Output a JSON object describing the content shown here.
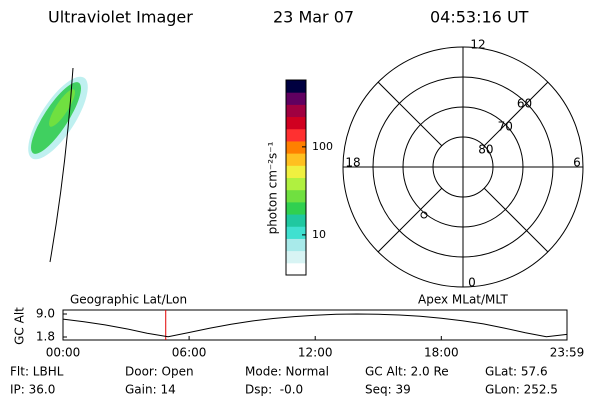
{
  "header": {
    "title": "Ultraviolet Imager",
    "date": "23 Mar 07",
    "time": "04:53:16 UT"
  },
  "colorbar": {
    "label": "photon cm⁻²s⁻¹",
    "log": true,
    "lim": [
      3.5,
      575
    ],
    "ticks": [
      10,
      100
    ],
    "colors": [
      "#ffffff",
      "#d8f4f4",
      "#a8eaea",
      "#40e0d0",
      "#20c8a0",
      "#30d050",
      "#70e040",
      "#b0f040",
      "#f0f040",
      "#ffc020",
      "#ff8000",
      "#ff3030",
      "#d00020",
      "#a00040",
      "#600060",
      "#000040"
    ]
  },
  "polar": {
    "rlim": [
      90,
      50
    ],
    "rings": [
      80,
      70,
      60
    ],
    "mlt_labels": {
      "top": "12",
      "left": "18",
      "right": "6",
      "bottom": "0"
    }
  },
  "orbit_plot": {
    "ylabel": "GC Alt",
    "left_label": "Geographic Lat/Lon",
    "right_label": "Apex MLat/MLT",
    "ylim": [
      1.8,
      9.0
    ],
    "yticks": [
      {
        "value": 9.0,
        "label": "9.0"
      },
      {
        "value": 1.8,
        "label": "1.8"
      }
    ],
    "xlim": [
      0,
      23.98
    ],
    "xticks": [
      {
        "value": 0,
        "label": "00:00"
      },
      {
        "value": 6,
        "label": "06:00"
      },
      {
        "value": 12,
        "label": "12:00"
      },
      {
        "value": 18,
        "label": "18:00"
      },
      {
        "value": 23.98,
        "label": "23:59"
      }
    ],
    "current_time": 4.888,
    "current_color": "#e00000",
    "x": [
      0,
      1,
      2,
      3,
      4,
      5,
      6,
      7,
      8,
      9,
      10,
      11,
      12,
      13,
      14,
      15,
      16,
      17,
      18,
      19,
      20,
      21,
      22,
      23,
      23.98
    ],
    "values": [
      7.4,
      6.6,
      5.6,
      4.4,
      3.0,
      1.9,
      3.2,
      4.6,
      5.8,
      6.8,
      7.6,
      8.2,
      8.6,
      8.9,
      9.0,
      8.9,
      8.7,
      8.3,
      7.7,
      6.9,
      5.9,
      4.6,
      3.1,
      1.9,
      2.6
    ]
  },
  "footer": {
    "rows": [
      [
        "Flt: LBHL",
        "Door: Open",
        "Mode: Normal",
        "GC Alt: 2.0 Re",
        "GLat: 57.6"
      ],
      [
        "IP: 36.0",
        "Gain: 14",
        "Dsp:  -0.0",
        "Seq: 39",
        "GLon: 252.5"
      ]
    ]
  }
}
